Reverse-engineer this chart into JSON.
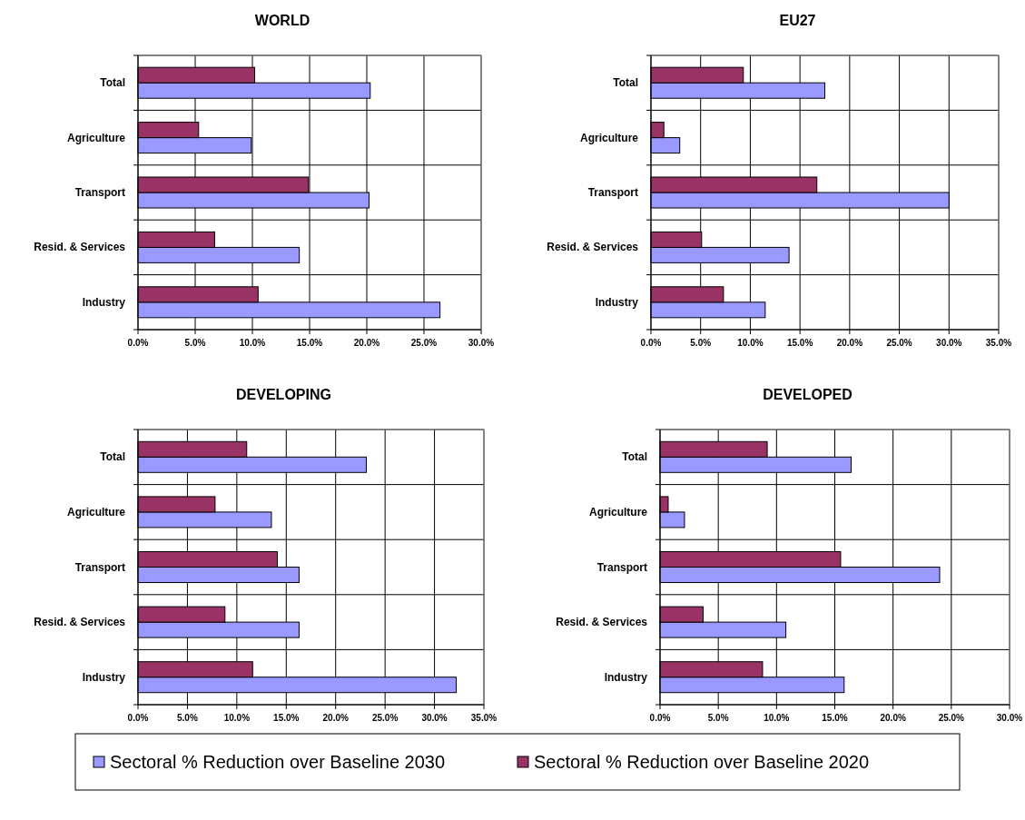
{
  "chart_data": [
    {
      "type": "bar",
      "title": "WORLD",
      "orientation": "horizontal",
      "categories": [
        "Total",
        "Agriculture",
        "Transport",
        "Resid. & Services",
        "Industry"
      ],
      "grid": true,
      "legend": "bottom",
      "xlim": [
        0,
        30
      ],
      "xticks": [
        {
          "value": 0,
          "label": "0.0%"
        },
        {
          "value": 5,
          "label": "5.0%"
        },
        {
          "value": 10,
          "label": "10.0%"
        },
        {
          "value": 15,
          "label": "15.0%"
        },
        {
          "value": 20,
          "label": "20.0%"
        },
        {
          "value": 25,
          "label": "25.0%"
        },
        {
          "value": 30,
          "label": "30.0%"
        }
      ],
      "series": [
        {
          "name": "Sectoral % Reduction over Baseline 2030",
          "color": "#9999ff",
          "values": [
            20.3,
            9.9,
            20.2,
            14.1,
            26.4
          ]
        },
        {
          "name": "Sectoral % Reduction over Baseline 2020",
          "color": "#993366",
          "values": [
            10.2,
            5.3,
            14.9,
            6.7,
            10.5
          ]
        }
      ]
    },
    {
      "type": "bar",
      "title": "EU27",
      "orientation": "horizontal",
      "categories": [
        "Total",
        "Agriculture",
        "Transport",
        "Resid. & Services",
        "Industry"
      ],
      "grid": true,
      "xlim": [
        0,
        35
      ],
      "xticks": [
        {
          "value": 0,
          "label": "0.0%"
        },
        {
          "value": 5,
          "label": "5.0%"
        },
        {
          "value": 10,
          "label": "10.0%"
        },
        {
          "value": 15,
          "label": "15.0%"
        },
        {
          "value": 20,
          "label": "20.0%"
        },
        {
          "value": 25,
          "label": "25.0%"
        },
        {
          "value": 30,
          "label": "30.0%"
        },
        {
          "value": 35,
          "label": "35.0%"
        }
      ],
      "series": [
        {
          "color": "#9999ff",
          "values": [
            17.5,
            2.9,
            30.0,
            13.9,
            11.5
          ]
        },
        {
          "color": "#993366",
          "values": [
            9.3,
            1.3,
            16.7,
            5.1,
            7.3
          ]
        }
      ]
    },
    {
      "type": "bar",
      "title": "DEVELOPING",
      "orientation": "horizontal",
      "categories": [
        "Total",
        "Agriculture",
        "Transport",
        "Resid. & Services",
        "Industry"
      ],
      "grid": true,
      "xlim": [
        0,
        35
      ],
      "xticks": [
        {
          "value": 0,
          "label": "0.0%"
        },
        {
          "value": 5,
          "label": "5.0%"
        },
        {
          "value": 10,
          "label": "10.0%"
        },
        {
          "value": 15,
          "label": "15.0%"
        },
        {
          "value": 20,
          "label": "20.0%"
        },
        {
          "value": 25,
          "label": "25.0%"
        },
        {
          "value": 30,
          "label": "30.0%"
        },
        {
          "value": 35,
          "label": "35.0%"
        }
      ],
      "series": [
        {
          "color": "#9999ff",
          "values": [
            23.1,
            13.5,
            16.3,
            16.3,
            32.2
          ]
        },
        {
          "color": "#993366",
          "values": [
            11.0,
            7.8,
            14.1,
            8.8,
            11.6
          ]
        }
      ]
    },
    {
      "type": "bar",
      "title": "DEVELOPED",
      "orientation": "horizontal",
      "categories": [
        "Total",
        "Agriculture",
        "Transport",
        "Resid. & Services",
        "Industry"
      ],
      "grid": true,
      "xlim": [
        0,
        30
      ],
      "xticks": [
        {
          "value": 0,
          "label": "0.0%"
        },
        {
          "value": 5,
          "label": "5.0%"
        },
        {
          "value": 10,
          "label": "10.0%"
        },
        {
          "value": 15,
          "label": "15.0%"
        },
        {
          "value": 20,
          "label": "20.0%"
        },
        {
          "value": 25,
          "label": "25.0%"
        },
        {
          "value": 30,
          "label": "30.0%"
        }
      ],
      "series": [
        {
          "color": "#9999ff",
          "values": [
            16.4,
            2.1,
            24.0,
            10.8,
            15.8
          ]
        },
        {
          "color": "#993366",
          "values": [
            9.2,
            0.7,
            15.5,
            3.7,
            8.8
          ]
        }
      ]
    }
  ]
}
